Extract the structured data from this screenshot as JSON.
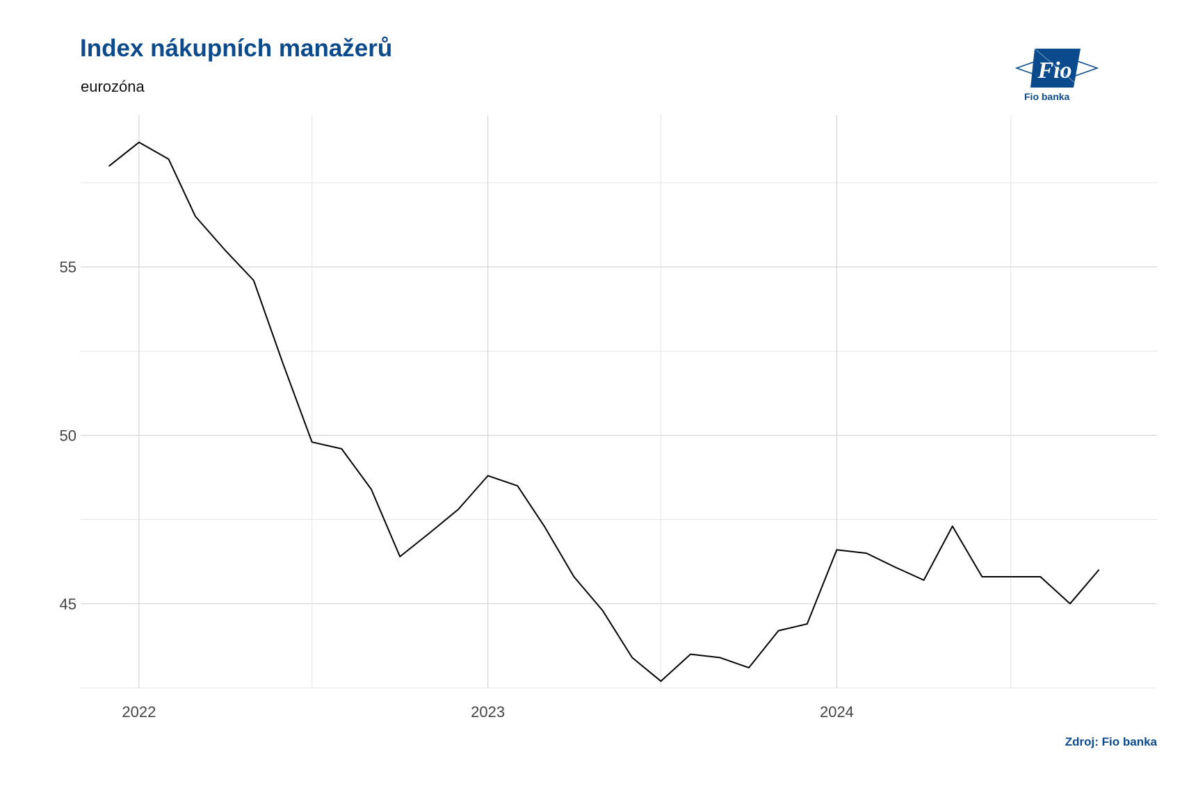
{
  "header": {
    "title": "Index nákupních manažerů",
    "subtitle": "eurozóna"
  },
  "logo": {
    "mark_text": "Fio",
    "caption": "Fio banka",
    "color": "#0b4a8c"
  },
  "source": "Zdroj: Fio banka",
  "chart_data": {
    "type": "line",
    "title": "Index nákupních manažerů",
    "subtitle": "eurozóna",
    "xlabel": "",
    "ylabel": "",
    "grid": true,
    "x_ticks": [
      "2022",
      "2023",
      "2024"
    ],
    "y_ticks": [
      45,
      50,
      55
    ],
    "xlim": [
      "2021-11-01",
      "2024-12-01"
    ],
    "ylim": [
      42.5,
      59.5
    ],
    "line_color": "#000000",
    "series": [
      {
        "x": [
          "2021-12-01",
          "2022-01-01",
          "2022-02-01",
          "2022-03-01",
          "2022-04-01",
          "2022-05-01",
          "2022-06-01",
          "2022-07-01",
          "2022-08-01",
          "2022-09-01",
          "2022-10-01",
          "2022-11-01",
          "2022-12-01",
          "2023-01-01",
          "2023-02-01",
          "2023-03-01",
          "2023-04-01",
          "2023-05-01",
          "2023-06-01",
          "2023-07-01",
          "2023-08-01",
          "2023-09-01",
          "2023-10-01",
          "2023-11-01",
          "2023-12-01",
          "2024-01-01",
          "2024-02-01",
          "2024-03-01",
          "2024-04-01",
          "2024-05-01",
          "2024-06-01",
          "2024-07-01",
          "2024-08-01",
          "2024-09-01",
          "2024-10-01"
        ],
        "values": [
          58.0,
          58.7,
          58.2,
          56.5,
          55.5,
          54.6,
          52.1,
          49.8,
          49.6,
          48.4,
          46.4,
          47.1,
          47.8,
          48.8,
          48.5,
          47.3,
          45.8,
          44.8,
          43.4,
          42.7,
          43.5,
          43.4,
          43.1,
          44.2,
          44.4,
          46.6,
          46.5,
          46.1,
          45.7,
          47.3,
          45.8,
          45.8,
          45.8,
          45.0,
          46.0
        ]
      }
    ]
  }
}
